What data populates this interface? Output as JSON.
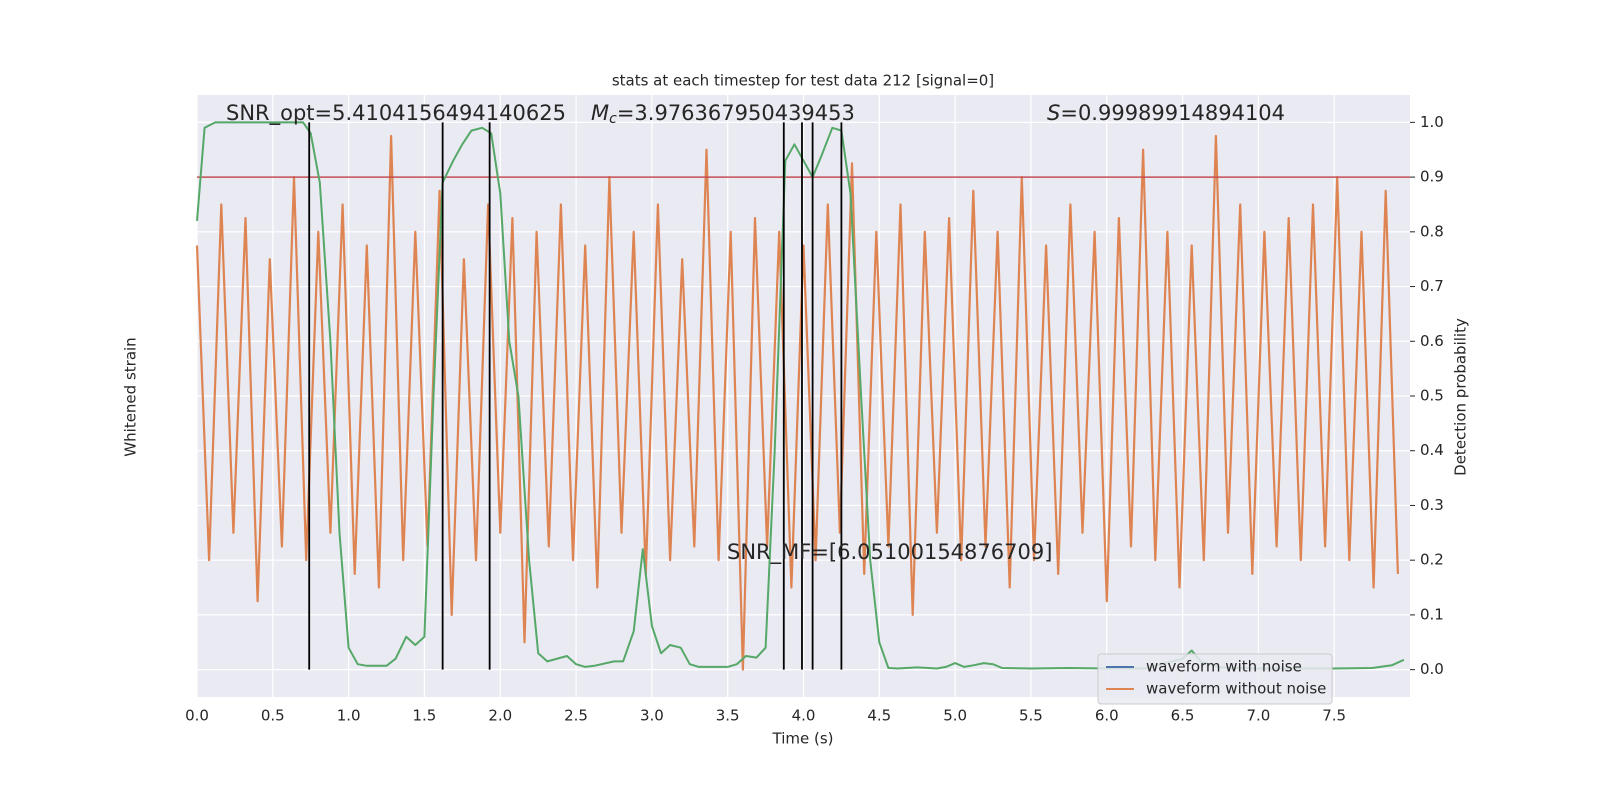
{
  "chart_data": {
    "type": "line",
    "title": "stats at each timestep for test data 212 [signal=0]",
    "xlabel": "Time (s)",
    "ylabel": "Whitened strain",
    "y2label": "Detection probability",
    "xlim": [
      0,
      8
    ],
    "xticks": [
      {
        "value": 0,
        "label": "0.0"
      },
      0.5,
      {
        "value": 1,
        "label": "1.0"
      },
      1.5,
      {
        "value": 2,
        "label": "2.0"
      },
      2.5,
      {
        "value": 3,
        "label": "3.0"
      },
      3.5,
      {
        "value": 4,
        "label": "4.0"
      },
      4.5,
      {
        "value": 5,
        "label": "5.0"
      },
      5.5,
      {
        "value": 6,
        "label": "6.0"
      },
      6.5,
      {
        "value": 7,
        "label": "7.0"
      },
      7.5
    ],
    "ylim": [
      -1.1,
      1.1
    ],
    "y2lim": [
      -0.05,
      1.05
    ],
    "y2ticks": [
      {
        "value": 0,
        "label": "0.0"
      },
      0.1,
      0.2,
      0.3,
      0.4,
      0.5,
      0.6,
      0.7,
      0.8,
      0.9,
      {
        "value": 1,
        "label": "1.0"
      }
    ],
    "grid": true,
    "legend": "lower right",
    "series": [
      {
        "name": "waveform with noise",
        "color": "#4c72b0"
      },
      {
        "name": "waveform without noise",
        "color": "#dd8452",
        "axis": "y",
        "x": [
          0,
          0.08,
          0.16,
          0.24,
          0.32,
          0.4,
          0.48,
          0.56,
          0.64,
          0.72,
          0.8,
          0.88,
          0.96,
          1.04,
          1.12,
          1.2,
          1.28,
          1.36,
          1.44,
          1.52,
          1.6,
          1.68,
          1.76,
          1.84,
          1.92,
          2,
          2.08,
          2.16,
          2.24,
          2.32,
          2.4,
          2.48,
          2.56,
          2.64,
          2.72,
          2.8,
          2.88,
          2.96,
          3.04,
          3.12,
          3.2,
          3.28,
          3.36,
          3.44,
          3.52,
          3.6,
          3.68,
          3.76,
          3.84,
          3.92,
          4,
          4.08,
          4.16,
          4.24,
          4.32,
          4.4,
          4.48,
          4.56,
          4.64,
          4.72,
          4.8,
          4.88,
          4.96,
          5.04,
          5.12,
          5.2,
          5.28,
          5.36,
          5.44,
          5.52,
          5.6,
          5.68,
          5.76,
          5.84,
          5.92,
          6,
          6.08,
          6.16,
          6.24,
          6.32,
          6.4,
          6.48,
          6.56,
          6.64,
          6.72,
          6.8,
          6.88,
          6.96,
          7.04,
          7.12,
          7.2,
          7.28,
          7.36,
          7.44,
          7.52,
          7.6,
          7.68,
          7.76,
          7.84,
          7.92
        ],
        "values": [
          0.55,
          -0.6,
          0.7,
          -0.5,
          0.65,
          -0.75,
          0.5,
          -0.55,
          0.8,
          -0.6,
          0.6,
          -0.5,
          0.7,
          -0.65,
          0.55,
          -0.7,
          0.95,
          -0.6,
          0.6,
          -0.55,
          0.75,
          -0.8,
          0.5,
          -0.6,
          0.7,
          -0.5,
          0.65,
          -0.9,
          0.6,
          -0.55,
          0.7,
          -0.6,
          0.55,
          -0.7,
          0.8,
          -0.5,
          0.6,
          -0.65,
          0.7,
          -0.6,
          0.5,
          -0.55,
          0.9,
          -0.6,
          0.6,
          -1.0,
          0.65,
          -0.55,
          0.6,
          -0.7,
          0.55,
          -0.6,
          0.7,
          -0.5,
          0.85,
          -0.65,
          0.6,
          -0.55,
          0.7,
          -0.8,
          0.6,
          -0.5,
          0.65,
          -0.6,
          0.75,
          -0.55,
          0.6,
          -0.7,
          0.8,
          -0.6,
          0.55,
          -0.65,
          0.7,
          -0.5,
          0.6,
          -0.75,
          0.65,
          -0.55,
          0.9,
          -0.6,
          0.6,
          -0.7,
          0.55,
          -0.6,
          0.95,
          -0.5,
          0.7,
          -0.65,
          0.6,
          -0.55,
          0.65,
          -0.6,
          0.7,
          -0.55,
          0.8,
          -0.6,
          0.6,
          -0.7,
          0.75,
          -0.65
        ]
      }
    ],
    "probability": {
      "color": "#55a868",
      "axis": "y2",
      "x": [
        0,
        0.05,
        0.12,
        0.7,
        0.75,
        0.81,
        0.88,
        0.94,
        1,
        1.06,
        1.12,
        1.25,
        1.31,
        1.38,
        1.44,
        1.5,
        1.56,
        1.62,
        1.69,
        1.75,
        1.81,
        1.88,
        1.94,
        2,
        2.06,
        2.12,
        2.19,
        2.25,
        2.31,
        2.44,
        2.5,
        2.56,
        2.62,
        2.75,
        2.81,
        2.88,
        2.94,
        3,
        3.06,
        3.12,
        3.19,
        3.25,
        3.31,
        3.5,
        3.56,
        3.62,
        3.69,
        3.75,
        3.81,
        3.88,
        3.94,
        4,
        4.06,
        4.12,
        4.19,
        4.25,
        4.31,
        4.38,
        4.44,
        4.5,
        4.56,
        4.62,
        4.75,
        4.88,
        4.94,
        5,
        5.06,
        5.12,
        5.19,
        5.25,
        5.31,
        5.5,
        5.75,
        6,
        6.25,
        6.5,
        6.56,
        6.62,
        6.75,
        7,
        7.5,
        7.75,
        7.88,
        7.96
      ],
      "values": [
        0.82,
        0.99,
        1.0,
        1.0,
        0.98,
        0.89,
        0.6,
        0.25,
        0.04,
        0.01,
        0.007,
        0.007,
        0.02,
        0.06,
        0.045,
        0.06,
        0.5,
        0.89,
        0.93,
        0.96,
        0.985,
        0.99,
        0.98,
        0.87,
        0.6,
        0.5,
        0.2,
        0.03,
        0.015,
        0.025,
        0.01,
        0.005,
        0.007,
        0.015,
        0.015,
        0.07,
        0.22,
        0.08,
        0.03,
        0.045,
        0.04,
        0.01,
        0.005,
        0.005,
        0.01,
        0.025,
        0.022,
        0.04,
        0.4,
        0.93,
        0.96,
        0.93,
        0.9,
        0.94,
        0.99,
        0.985,
        0.87,
        0.5,
        0.2,
        0.05,
        0.003,
        0.002,
        0.004,
        0.002,
        0.005,
        0.012,
        0.005,
        0.008,
        0.012,
        0.01,
        0.003,
        0.002,
        0.003,
        0.002,
        0.002,
        0.02,
        0.035,
        0.015,
        0.004,
        0.002,
        0.002,
        0.003,
        0.008,
        0.018
      ]
    },
    "threshold": 0.9,
    "threshold_color": "#c44e52",
    "vlines": [
      0.74,
      1.62,
      1.93,
      3.87,
      3.99,
      4.06,
      4.25
    ],
    "annotations": {
      "snr_opt": "SNR_opt=5.4104156494140625",
      "mc": {
        "symbol": "M",
        "sub": "c",
        "value": "=3.976367950439453"
      },
      "s": {
        "symbol": "S",
        "value": "=0.99989914894104"
      },
      "snr_mf": "SNR_MF=[6.05100154876709]"
    }
  }
}
